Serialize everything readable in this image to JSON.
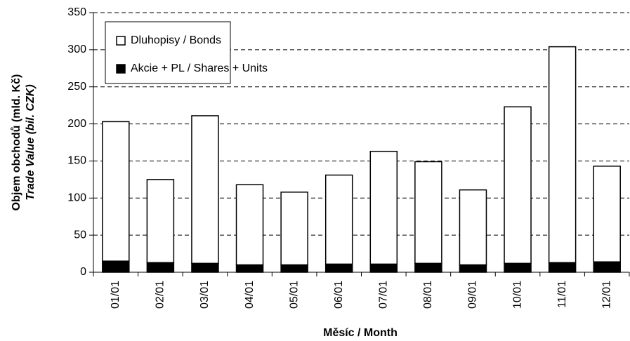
{
  "chart_data": {
    "type": "bar",
    "stacked": true,
    "y_label": "Objem obchodů (mld. Kč)",
    "y_label_2": "Trade Value (bil. CZK)",
    "x_label": "Měsíc / Month",
    "categories": [
      "01/01",
      "02/01",
      "03/01",
      "04/01",
      "05/01",
      "06/01",
      "07/01",
      "08/01",
      "09/01",
      "10/01",
      "11/01",
      "12/01"
    ],
    "series": [
      {
        "name": "Akcie + PL / Shares + Units",
        "color": "#000000",
        "values": [
          15,
          13,
          12,
          10,
          10,
          11,
          11,
          12,
          10,
          12,
          13,
          14
        ]
      },
      {
        "name": "Dluhopisy / Bonds",
        "color": "#ffffff",
        "values": [
          188,
          112,
          199,
          108,
          98,
          120,
          152,
          137,
          101,
          211,
          291,
          129
        ]
      }
    ],
    "ylim": [
      0,
      350
    ],
    "yticks": [
      0,
      50,
      100,
      150,
      200,
      250,
      300,
      350
    ],
    "grid": true
  }
}
